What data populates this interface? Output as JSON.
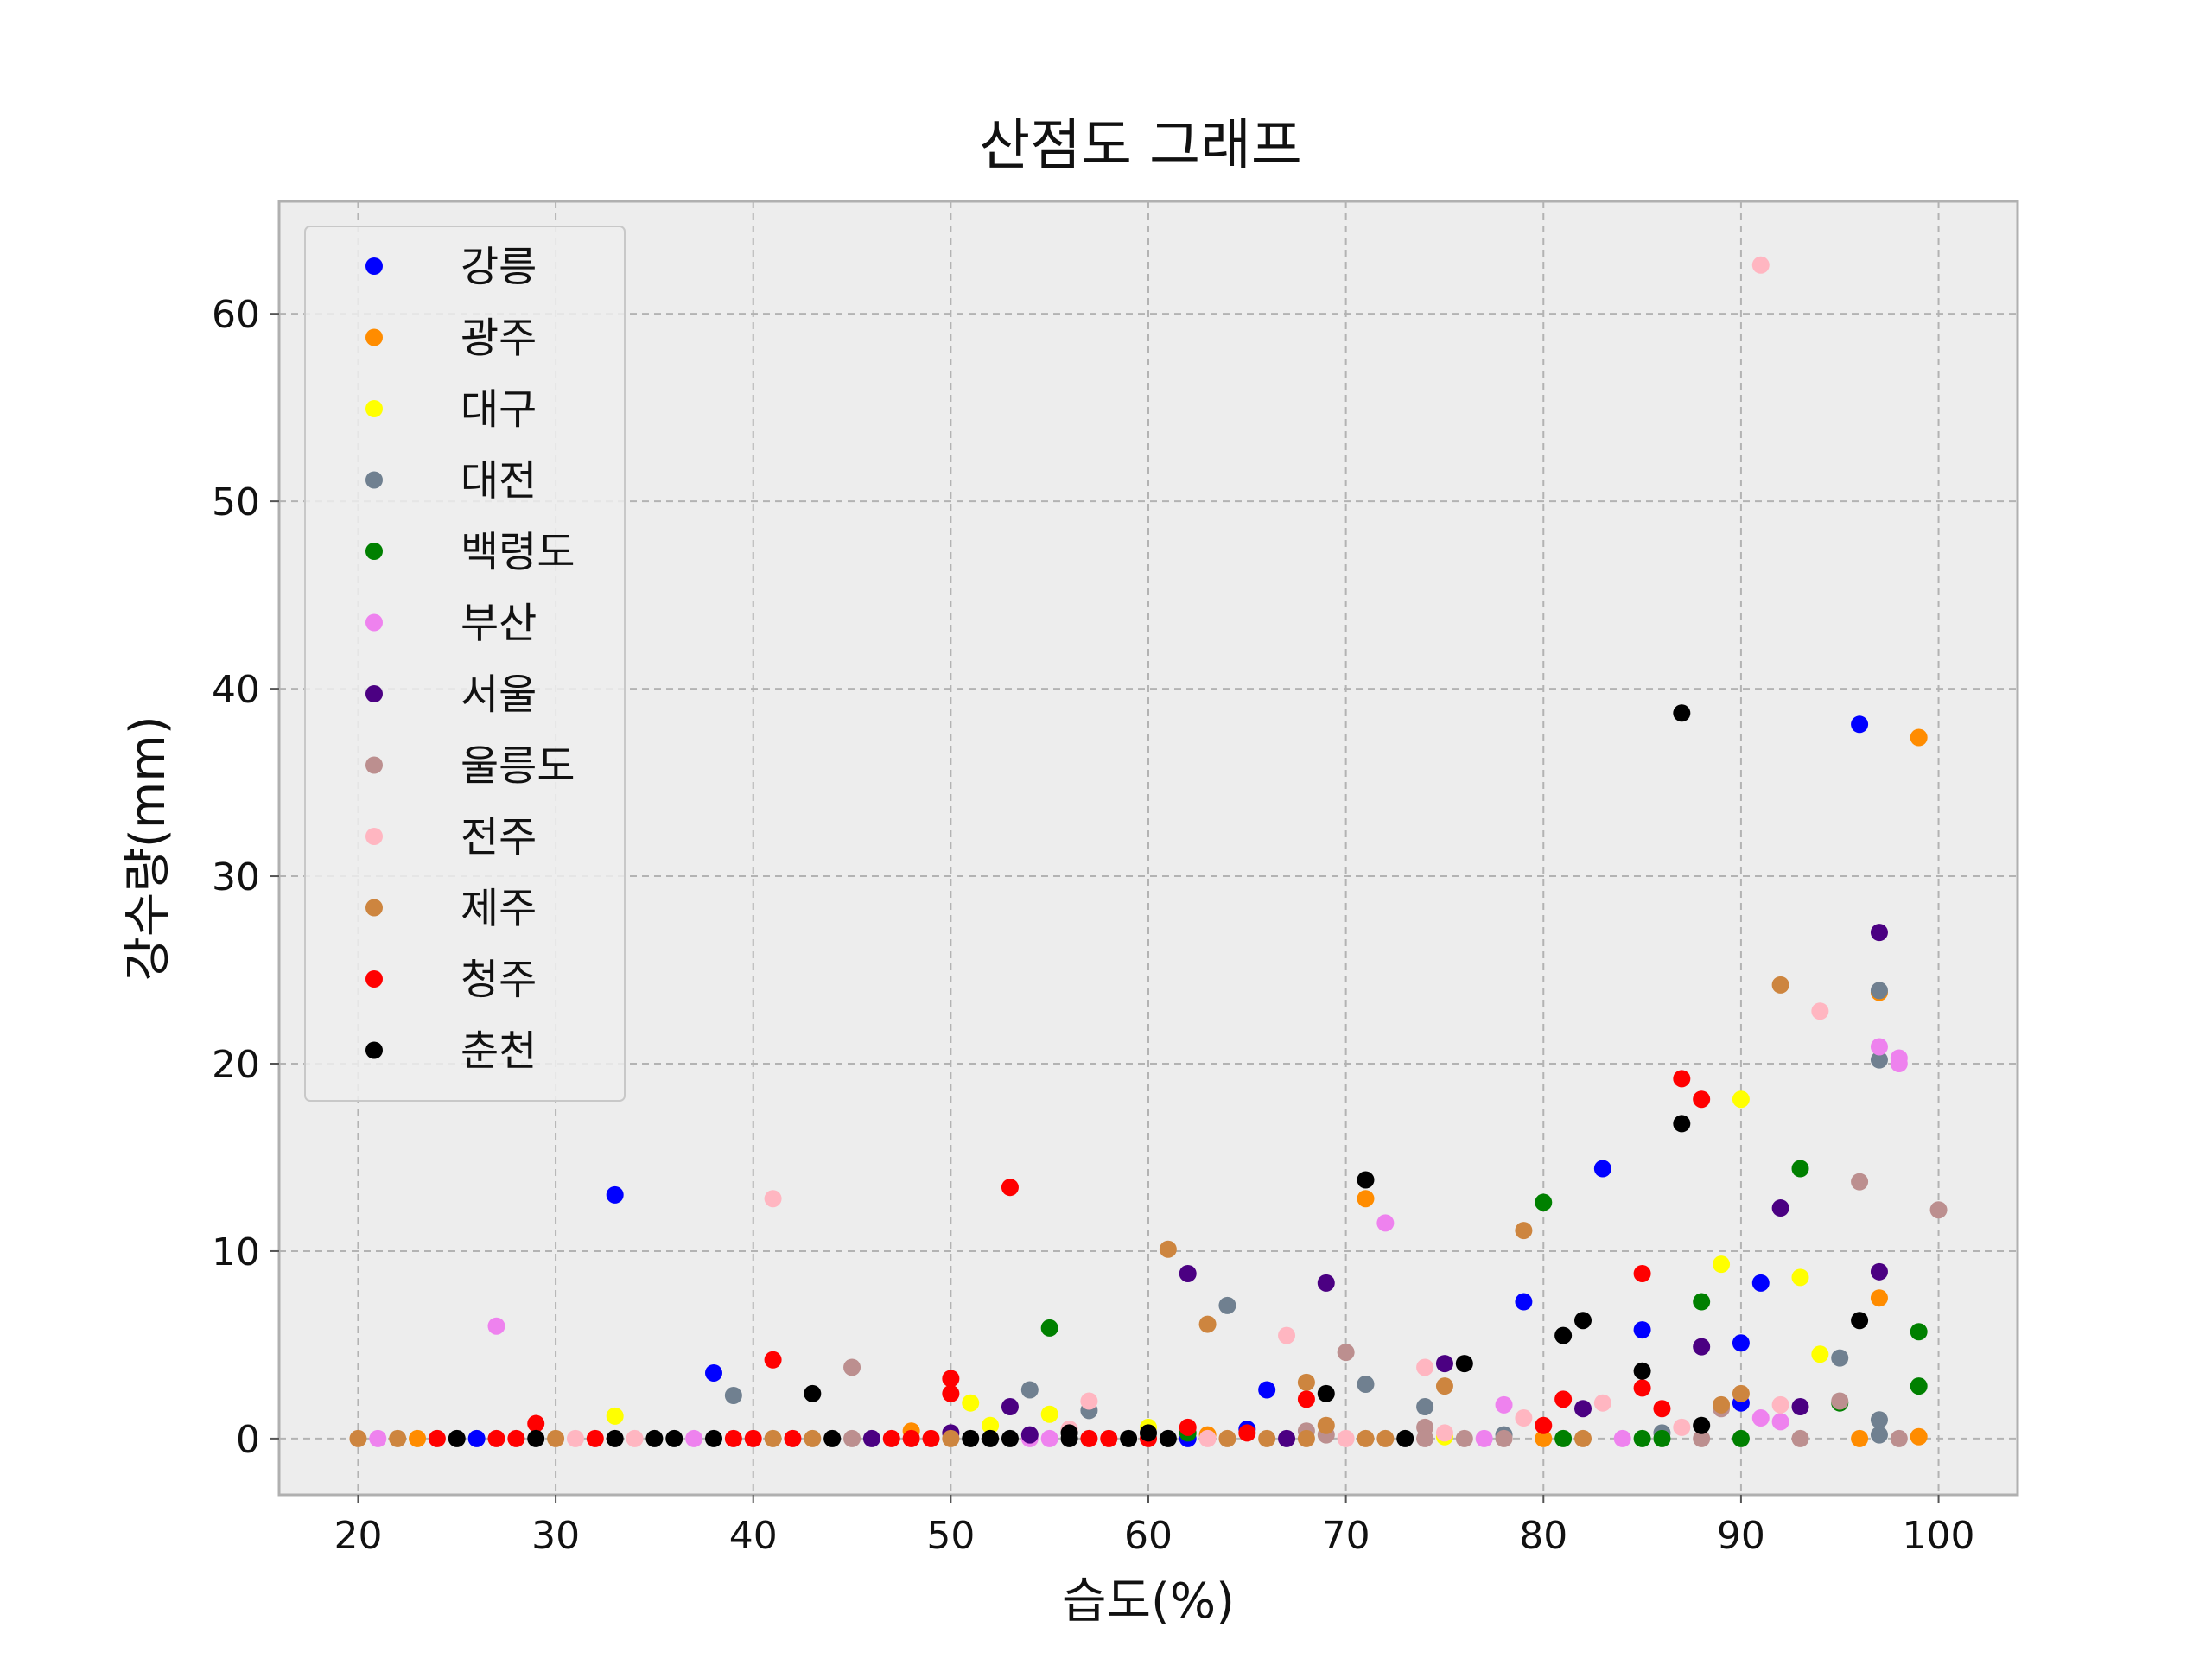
{
  "chart_data": {
    "type": "scatter",
    "title": "산점도 그래프",
    "xlabel": "습도(%)",
    "ylabel": "강수량(mm)",
    "xlim": [
      16,
      104
    ],
    "ylim": [
      -3,
      66
    ],
    "xticks": [
      20,
      30,
      40,
      50,
      60,
      70,
      80,
      90,
      100
    ],
    "yticks": [
      0,
      10,
      20,
      30,
      40,
      50,
      60
    ],
    "grid": true,
    "legend_position": "top-left",
    "background": "#ededed",
    "series": [
      {
        "name": "강릉",
        "color": "#0000ff",
        "points": [
          [
            26,
            0
          ],
          [
            33,
            13
          ],
          [
            38,
            3.5
          ],
          [
            62,
            0
          ],
          [
            65,
            0.5
          ],
          [
            66,
            2.6
          ],
          [
            79,
            7.3
          ],
          [
            83,
            14.4
          ],
          [
            85,
            5.8
          ],
          [
            90,
            5.1
          ],
          [
            90,
            1.9
          ],
          [
            91,
            8.3
          ],
          [
            96,
            38.1
          ]
        ]
      },
      {
        "name": "광주",
        "color": "#ff8c00",
        "points": [
          [
            23,
            0
          ],
          [
            48,
            0.4
          ],
          [
            63,
            0.2
          ],
          [
            71,
            12.8
          ],
          [
            80,
            0
          ],
          [
            96,
            0
          ],
          [
            97,
            23.8
          ],
          [
            97,
            7.5
          ],
          [
            99,
            37.4
          ],
          [
            99,
            0.1
          ]
        ]
      },
      {
        "name": "대구",
        "color": "#ffff00",
        "points": [
          [
            33,
            1.2
          ],
          [
            51,
            1.9
          ],
          [
            52,
            0.7
          ],
          [
            55,
            1.3
          ],
          [
            60,
            0.6
          ],
          [
            75,
            0.1
          ],
          [
            89,
            9.3
          ],
          [
            90,
            18.1
          ],
          [
            93,
            8.6
          ],
          [
            94,
            4.5
          ]
        ]
      },
      {
        "name": "대전",
        "color": "#708090",
        "points": [
          [
            39,
            2.3
          ],
          [
            54,
            2.6
          ],
          [
            57,
            1.5
          ],
          [
            64,
            7.1
          ],
          [
            71,
            2.9
          ],
          [
            74,
            1.7
          ],
          [
            78,
            0.2
          ],
          [
            86,
            0.3
          ],
          [
            95,
            4.3
          ],
          [
            97,
            23.9
          ],
          [
            97,
            20.2
          ],
          [
            97,
            1
          ],
          [
            97,
            0.2
          ]
        ]
      },
      {
        "name": "백령도",
        "color": "#008000",
        "points": [
          [
            55,
            5.9
          ],
          [
            62,
            0.3
          ],
          [
            80,
            12.6
          ],
          [
            81,
            0
          ],
          [
            85,
            0
          ],
          [
            86,
            0
          ],
          [
            88,
            7.3
          ],
          [
            90,
            0
          ],
          [
            93,
            14.4
          ],
          [
            95,
            1.9
          ],
          [
            99,
            5.7
          ],
          [
            99,
            2.8
          ]
        ]
      },
      {
        "name": "부산",
        "color": "#ee82ee",
        "points": [
          [
            21,
            0
          ],
          [
            27,
            6
          ],
          [
            37,
            0
          ],
          [
            54,
            0
          ],
          [
            55,
            0
          ],
          [
            72,
            11.5
          ],
          [
            77,
            0
          ],
          [
            78,
            1.8
          ],
          [
            84,
            0
          ],
          [
            91,
            1.1
          ],
          [
            92,
            0.9
          ],
          [
            97,
            20.9
          ],
          [
            98,
            20.3
          ],
          [
            98,
            20
          ]
        ]
      },
      {
        "name": "서울",
        "color": "#4b0082",
        "points": [
          [
            46,
            0
          ],
          [
            50,
            0.3
          ],
          [
            53,
            1.7
          ],
          [
            54,
            0.2
          ],
          [
            62,
            8.8
          ],
          [
            67,
            0
          ],
          [
            69,
            8.3
          ],
          [
            75,
            4
          ],
          [
            82,
            1.6
          ],
          [
            88,
            4.9
          ],
          [
            92,
            12.3
          ],
          [
            93,
            1.7
          ],
          [
            97,
            27
          ],
          [
            97,
            8.9
          ]
        ]
      },
      {
        "name": "울릉도",
        "color": "#bc8f8f",
        "points": [
          [
            45,
            3.8
          ],
          [
            45,
            0
          ],
          [
            56,
            0.4
          ],
          [
            68,
            0.4
          ],
          [
            69,
            0.2
          ],
          [
            70,
            4.6
          ],
          [
            74,
            0.6
          ],
          [
            74,
            0
          ],
          [
            76,
            0
          ],
          [
            78,
            0
          ],
          [
            88,
            0
          ],
          [
            89,
            1.6
          ],
          [
            93,
            0
          ],
          [
            95,
            2
          ],
          [
            96,
            13.7
          ],
          [
            98,
            0
          ],
          [
            100,
            12.2
          ]
        ]
      },
      {
        "name": "전주",
        "color": "#ffb6c1",
        "points": [
          [
            31,
            0
          ],
          [
            34,
            0
          ],
          [
            41,
            12.8
          ],
          [
            56,
            0.5
          ],
          [
            57,
            2
          ],
          [
            63,
            0
          ],
          [
            67,
            5.5
          ],
          [
            70,
            0
          ],
          [
            74,
            3.8
          ],
          [
            75,
            0.3
          ],
          [
            79,
            1.1
          ],
          [
            83,
            1.9
          ],
          [
            87,
            0.6
          ],
          [
            91,
            62.6
          ],
          [
            92,
            1.8
          ],
          [
            94,
            22.8
          ]
        ]
      },
      {
        "name": "제주",
        "color": "#cd853f",
        "points": [
          [
            20,
            0
          ],
          [
            22,
            0
          ],
          [
            30,
            0
          ],
          [
            41,
            0
          ],
          [
            43,
            0
          ],
          [
            50,
            0
          ],
          [
            61,
            10.1
          ],
          [
            63,
            6.1
          ],
          [
            64,
            0
          ],
          [
            66,
            0
          ],
          [
            68,
            3
          ],
          [
            68,
            0
          ],
          [
            69,
            0.7
          ],
          [
            71,
            0
          ],
          [
            72,
            0
          ],
          [
            75,
            2.8
          ],
          [
            79,
            11.1
          ],
          [
            82,
            0
          ],
          [
            89,
            1.8
          ],
          [
            90,
            2.4
          ],
          [
            92,
            24.2
          ]
        ]
      },
      {
        "name": "청주",
        "color": "#ff0000",
        "points": [
          [
            24,
            0
          ],
          [
            27,
            0
          ],
          [
            28,
            0
          ],
          [
            29,
            0.8
          ],
          [
            32,
            0
          ],
          [
            39,
            0
          ],
          [
            40,
            0
          ],
          [
            41,
            4.2
          ],
          [
            42,
            0
          ],
          [
            47,
            0
          ],
          [
            48,
            0
          ],
          [
            49,
            0
          ],
          [
            50,
            3.2
          ],
          [
            50,
            2.4
          ],
          [
            53,
            13.4
          ],
          [
            57,
            0
          ],
          [
            58,
            0
          ],
          [
            60,
            0
          ],
          [
            62,
            0.6
          ],
          [
            65,
            0.3
          ],
          [
            68,
            2.1
          ],
          [
            80,
            0.7
          ],
          [
            81,
            2.1
          ],
          [
            85,
            8.8
          ],
          [
            85,
            2.7
          ],
          [
            86,
            1.6
          ],
          [
            87,
            19.2
          ],
          [
            88,
            18.1
          ]
        ]
      },
      {
        "name": "춘천",
        "color": "#000000",
        "points": [
          [
            25,
            0
          ],
          [
            29,
            0
          ],
          [
            33,
            0
          ],
          [
            35,
            0
          ],
          [
            36,
            0
          ],
          [
            38,
            0
          ],
          [
            43,
            2.4
          ],
          [
            44,
            0
          ],
          [
            51,
            0
          ],
          [
            52,
            0
          ],
          [
            53,
            0
          ],
          [
            56,
            0.3
          ],
          [
            56,
            0
          ],
          [
            59,
            0
          ],
          [
            60,
            0.3
          ],
          [
            61,
            0
          ],
          [
            69,
            2.4
          ],
          [
            71,
            13.8
          ],
          [
            73,
            0
          ],
          [
            76,
            4
          ],
          [
            81,
            5.5
          ],
          [
            82,
            6.3
          ],
          [
            85,
            3.6
          ],
          [
            87,
            38.7
          ],
          [
            87,
            16.8
          ],
          [
            88,
            0.7
          ],
          [
            96,
            6.3
          ]
        ]
      }
    ]
  }
}
